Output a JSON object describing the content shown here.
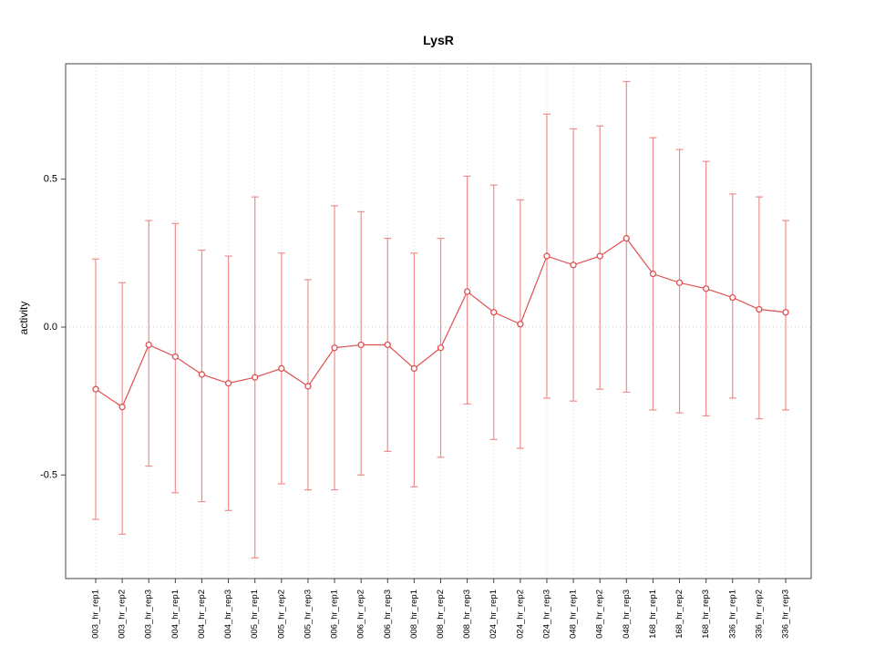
{
  "chart_data": {
    "type": "line",
    "title": "LysR",
    "xlabel": "",
    "ylabel": "activity",
    "ylim": [
      -0.85,
      0.89
    ],
    "yticks": [
      -0.5,
      0.0,
      0.5
    ],
    "grid": "vertical-dotted",
    "reference_line_y": 0,
    "legend": "none",
    "line_color": "#e04f4f",
    "error_bar_color": "#ee8d8d",
    "grid_color": "#d9d9d9",
    "box_color": "#444444",
    "categories": [
      "003_hr_rep1",
      "003_hr_rep2",
      "003_hr_rep3",
      "004_hr_rep1",
      "004_hr_rep2",
      "004_hr_rep3",
      "005_hr_rep1",
      "005_hr_rep2",
      "005_hr_rep3",
      "006_hr_rep1",
      "006_hr_rep2",
      "006_hr_rep3",
      "008_hr_rep1",
      "008_hr_rep2",
      "008_hr_rep3",
      "024_hr_rep1",
      "024_hr_rep2",
      "024_hr_rep3",
      "048_hr_rep1",
      "048_hr_rep2",
      "048_hr_rep3",
      "168_hr_rep1",
      "168_hr_rep2",
      "168_hr_rep3",
      "336_hr_rep1",
      "336_hr_rep2",
      "336_hr_rep3"
    ],
    "values": [
      -0.21,
      -0.27,
      -0.06,
      -0.1,
      -0.16,
      -0.19,
      -0.17,
      -0.14,
      -0.2,
      -0.07,
      -0.06,
      -0.06,
      -0.14,
      -0.07,
      0.12,
      0.05,
      0.01,
      0.24,
      0.21,
      0.24,
      0.3,
      0.18,
      0.15,
      0.13,
      0.1,
      0.06,
      0.05
    ],
    "error_high": [
      0.23,
      0.15,
      0.36,
      0.35,
      0.26,
      0.24,
      0.44,
      0.25,
      0.16,
      0.41,
      0.39,
      0.3,
      0.25,
      0.3,
      0.51,
      0.48,
      0.43,
      0.72,
      0.67,
      0.68,
      0.83,
      0.64,
      0.6,
      0.56,
      0.45,
      0.44,
      0.36
    ],
    "error_low": [
      -0.65,
      -0.7,
      -0.47,
      -0.56,
      -0.59,
      -0.62,
      -0.78,
      -0.53,
      -0.55,
      -0.55,
      -0.5,
      -0.42,
      -0.54,
      -0.44,
      -0.26,
      -0.38,
      -0.41,
      -0.24,
      -0.25,
      -0.21,
      -0.22,
      -0.28,
      -0.29,
      -0.3,
      -0.24,
      -0.31,
      -0.28
    ]
  }
}
